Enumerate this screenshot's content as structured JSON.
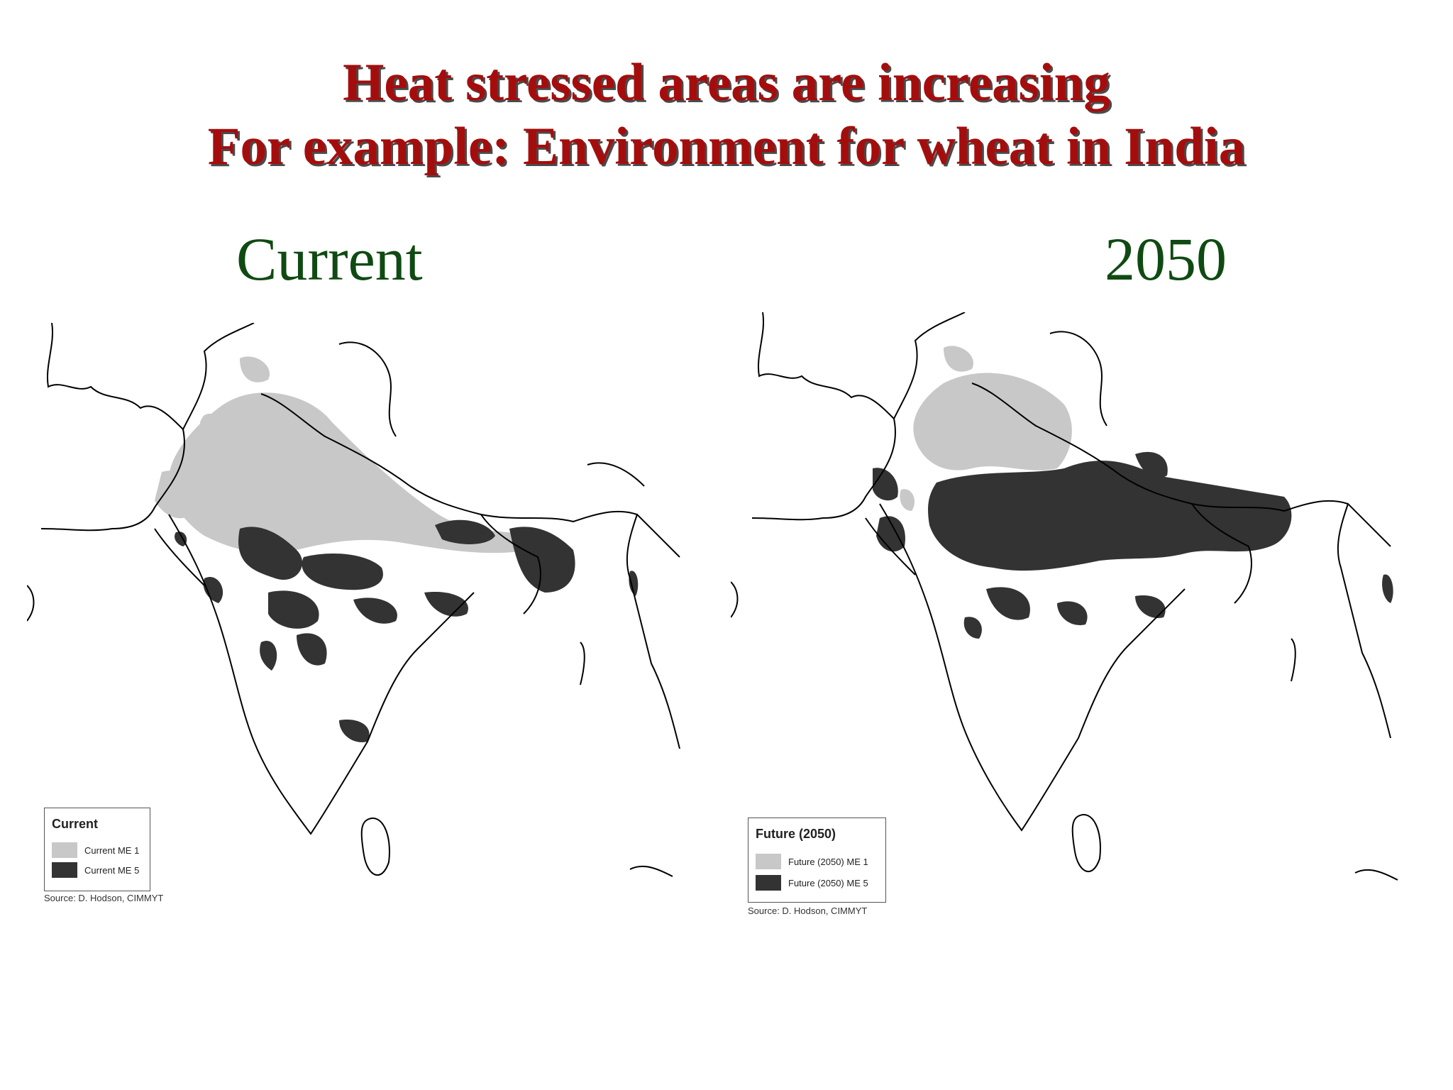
{
  "title_line1": "Heat stressed areas are increasing",
  "title_line2": "For example: Environment for wheat in India",
  "panel_left": {
    "label": "Current",
    "legend": {
      "title": "Current",
      "items": [
        {
          "label": "Current ME 1",
          "color": "#c8c8c8"
        },
        {
          "label": "Current ME 5",
          "color": "#333333"
        }
      ]
    },
    "source": "Source: D. Hodson, CIMMYT"
  },
  "panel_right": {
    "label": "2050",
    "legend": {
      "title": "Future (2050)",
      "items": [
        {
          "label": "Future (2050) ME 1",
          "color": "#c8c8c8"
        },
        {
          "label": "Future (2050) ME 5",
          "color": "#333333"
        }
      ]
    },
    "source": "Source: D. Hodson, CIMMYT"
  },
  "colors": {
    "title": "#a50d0d",
    "subtitle": "#0f4a12",
    "me1": "#c8c8c8",
    "me5": "#333333",
    "borders": "#000000"
  }
}
